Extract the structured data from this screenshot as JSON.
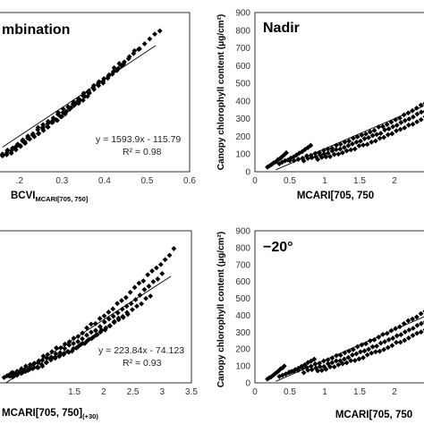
{
  "chart_data": [
    {
      "type": "scatter",
      "title": "mbination",
      "xlabel": "BCVI",
      "xlabel_sub": "MCARI[705, 750]",
      "ylabel": "",
      "xlim": [
        0.15,
        0.6
      ],
      "ylim": [
        0,
        900
      ],
      "xticks": [
        ".2",
        "0.3",
        "0.4",
        "0.5",
        "0.6"
      ],
      "equation": "y = 1593.9x - 115.79",
      "r2": "R² = 0.98",
      "fit": {
        "slope": 1593.9,
        "intercept": -115.79,
        "x_range": [
          0.16,
          0.52
        ]
      },
      "series": [
        {
          "x_start": 0.16,
          "x_end": 0.53,
          "y_start": 100,
          "y_end": 800,
          "bend": 0.12,
          "spread": 18,
          "n": 32
        },
        {
          "x_start": 0.16,
          "x_end": 0.48,
          "y_start": 95,
          "y_end": 690,
          "bend": 0.14,
          "spread": 16,
          "n": 28
        },
        {
          "x_start": 0.17,
          "x_end": 0.44,
          "y_start": 90,
          "y_end": 600,
          "bend": 0.15,
          "spread": 14,
          "n": 26
        },
        {
          "x_start": 0.16,
          "x_end": 0.36,
          "y_start": 90,
          "y_end": 430,
          "bend": 0.15,
          "spread": 12,
          "n": 20
        }
      ]
    },
    {
      "type": "scatter",
      "title": "Nadir",
      "xlabel": "MCARI[705, 750",
      "ylabel": "Canopy chlorophyll content (μg/cm²)",
      "xlim": [
        0,
        2.5
      ],
      "ylim": [
        0,
        900
      ],
      "yticks": [
        "0",
        "100",
        "200",
        "300",
        "400",
        "500",
        "600",
        "700",
        "800",
        "900"
      ],
      "xticks": [
        "0",
        "0.5",
        "1",
        "1.5",
        "2"
      ],
      "fit": {
        "slope": 170,
        "intercept": -40,
        "x_range": [
          0.3,
          2.5
        ]
      },
      "series": [
        {
          "x_start": 0.18,
          "x_end": 0.45,
          "y_start": 25,
          "y_end": 110,
          "bend": 0.25,
          "spread": 6,
          "n": 10
        },
        {
          "x_start": 0.35,
          "x_end": 0.8,
          "y_start": 45,
          "y_end": 150,
          "bend": 0.25,
          "spread": 6,
          "n": 12
        },
        {
          "x_start": 0.5,
          "x_end": 2.5,
          "y_start": 60,
          "y_end": 400,
          "bend": 0.35,
          "spread": 10,
          "n": 34
        },
        {
          "x_start": 0.7,
          "x_end": 2.5,
          "y_start": 65,
          "y_end": 360,
          "bend": 0.35,
          "spread": 10,
          "n": 32
        },
        {
          "x_start": 0.9,
          "x_end": 2.5,
          "y_start": 70,
          "y_end": 320,
          "bend": 0.35,
          "spread": 10,
          "n": 28
        }
      ]
    },
    {
      "type": "scatter",
      "title": "",
      "xlabel": "MCARI[705, 750]",
      "xlabel_sub": "(+30)",
      "ylabel": "",
      "xlim": [
        0.2,
        3.5
      ],
      "ylim": [
        0,
        900
      ],
      "xticks": [
        "1.5",
        "2",
        "2.5",
        "3",
        "3.5"
      ],
      "equation": "y = 223.84x - 74.123",
      "r2": "R² = 0.93",
      "fit": {
        "slope": 223.84,
        "intercept": -74.123,
        "x_range": [
          0.3,
          3.15
        ]
      },
      "series": [
        {
          "x_start": 0.3,
          "x_end": 3.2,
          "y_start": 40,
          "y_end": 790,
          "bend": 0.45,
          "spread": 20,
          "n": 40
        },
        {
          "x_start": 0.35,
          "x_end": 3.0,
          "y_start": 40,
          "y_end": 640,
          "bend": 0.45,
          "spread": 18,
          "n": 36
        },
        {
          "x_start": 0.4,
          "x_end": 2.8,
          "y_start": 40,
          "y_end": 520,
          "bend": 0.45,
          "spread": 16,
          "n": 32
        },
        {
          "x_start": 0.45,
          "x_end": 2.4,
          "y_start": 40,
          "y_end": 420,
          "bend": 0.45,
          "spread": 14,
          "n": 28
        }
      ]
    },
    {
      "type": "scatter",
      "title": "−20°",
      "xlabel": "MCARI[705, 750",
      "ylabel": "Canopy chlorophyll content (μg/cm²)",
      "xlim": [
        0,
        2.5
      ],
      "ylim": [
        0,
        900
      ],
      "yticks": [
        "0",
        "100",
        "200",
        "300",
        "400",
        "500",
        "600",
        "700",
        "800",
        "900"
      ],
      "xticks": [
        "0",
        "0.5",
        "1",
        "1.5",
        "2"
      ],
      "fit": {
        "slope": 180,
        "intercept": -45,
        "x_range": [
          0.3,
          2.5
        ]
      },
      "series": [
        {
          "x_start": 0.18,
          "x_end": 0.42,
          "y_start": 25,
          "y_end": 100,
          "bend": 0.25,
          "spread": 6,
          "n": 10
        },
        {
          "x_start": 0.35,
          "x_end": 0.85,
          "y_start": 40,
          "y_end": 140,
          "bend": 0.25,
          "spread": 6,
          "n": 12
        },
        {
          "x_start": 0.5,
          "x_end": 2.5,
          "y_start": 60,
          "y_end": 440,
          "bend": 0.35,
          "spread": 10,
          "n": 34
        },
        {
          "x_start": 0.7,
          "x_end": 2.5,
          "y_start": 65,
          "y_end": 380,
          "bend": 0.35,
          "spread": 10,
          "n": 32
        },
        {
          "x_start": 0.9,
          "x_end": 2.5,
          "y_start": 70,
          "y_end": 330,
          "bend": 0.35,
          "spread": 10,
          "n": 28
        }
      ]
    }
  ]
}
